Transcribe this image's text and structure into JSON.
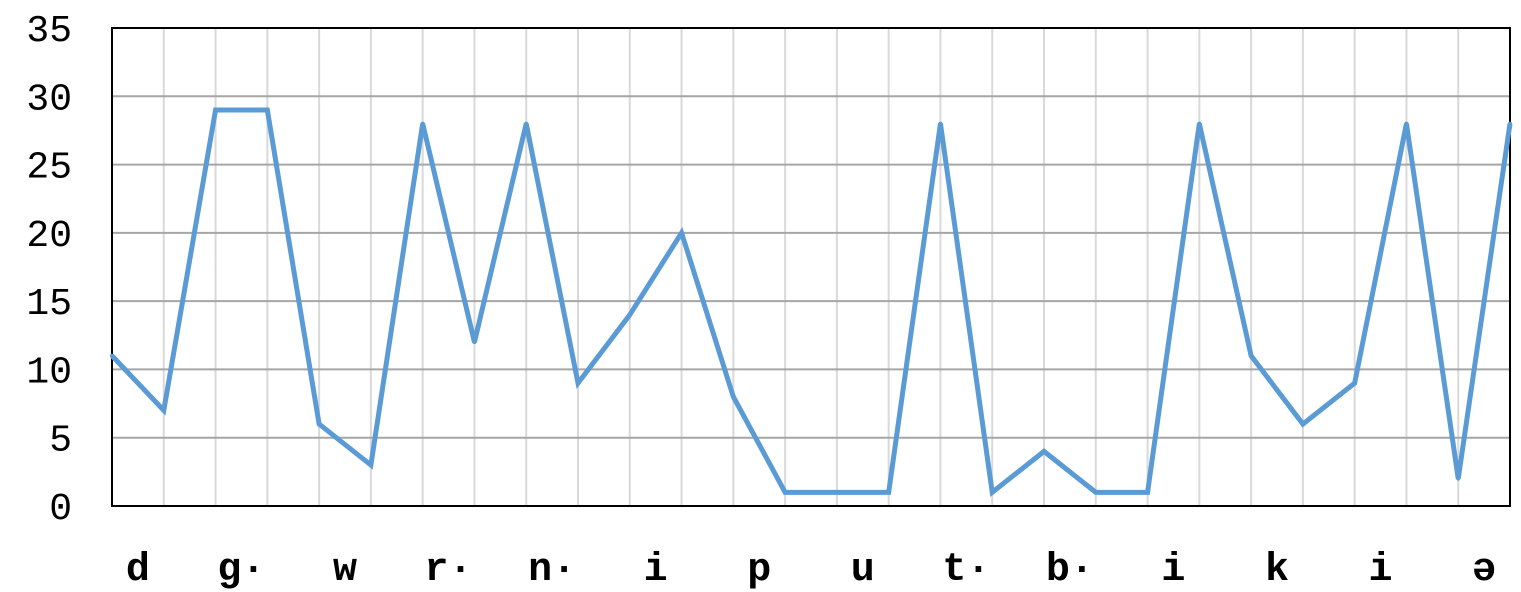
{
  "chart_data": {
    "type": "line",
    "title": "",
    "xlabel": "",
    "ylabel": "",
    "ylim": [
      0,
      35
    ],
    "yticks": [
      0,
      5,
      10,
      15,
      20,
      25,
      30,
      35
    ],
    "grid": true,
    "legend": "none",
    "colors": {
      "line": "#5b9bd5",
      "grid": "#c8c8c8",
      "axis": "#000000"
    },
    "tick_labels": [
      "d",
      "g·",
      "w",
      "r·",
      "n·",
      "i",
      "p",
      "u",
      "t·",
      "b·",
      "i",
      "k",
      "i",
      "ə"
    ],
    "series": [
      {
        "values": [
          11,
          7,
          29,
          29,
          6,
          3,
          28,
          12,
          28,
          9,
          14,
          20,
          8,
          1,
          1,
          1,
          28,
          1,
          4,
          1,
          1,
          28,
          11,
          6,
          9,
          28,
          2,
          28
        ]
      }
    ]
  }
}
